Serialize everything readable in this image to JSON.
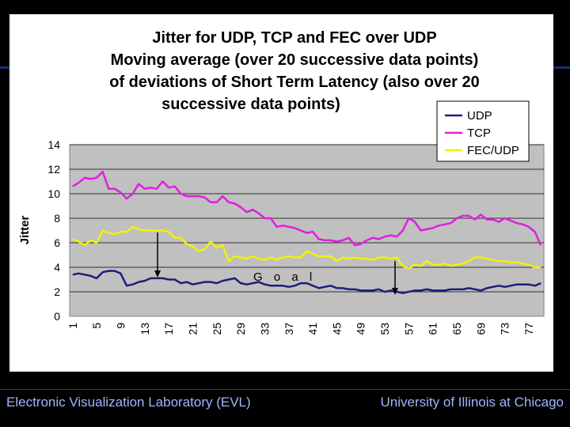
{
  "footer": {
    "left": "Electronic Visualization Laboratory (EVL)",
    "right": "University of Illinois at Chicago"
  },
  "annotation": {
    "goal": "G o a l"
  },
  "chart_data": {
    "type": "line",
    "title_lines": [
      "Jitter for UDP, TCP and FEC over UDP",
      "Moving average (over 20 successive data points)",
      "of deviations of Short Term Latency (also over 20",
      "successive data points)"
    ],
    "ylabel": "Jitter",
    "xlabel": "",
    "ylim": [
      0,
      14
    ],
    "yticks": [
      0,
      2,
      4,
      6,
      8,
      10,
      12,
      14
    ],
    "xticks": [
      1,
      5,
      9,
      13,
      17,
      21,
      25,
      29,
      33,
      37,
      41,
      45,
      49,
      53,
      57,
      61,
      65,
      69,
      73,
      77
    ],
    "x_start": 1,
    "x_end": 79,
    "legend_position": "top-right",
    "series": [
      {
        "name": "UDP",
        "color": "#1c1f7a",
        "values": [
          3.4,
          3.5,
          3.4,
          3.3,
          3.1,
          3.6,
          3.7,
          3.7,
          3.5,
          2.5,
          2.6,
          2.8,
          2.9,
          3.1,
          3.1,
          3.1,
          3.0,
          3.0,
          2.7,
          2.8,
          2.6,
          2.7,
          2.8,
          2.8,
          2.7,
          2.9,
          3.0,
          3.1,
          2.7,
          2.6,
          2.7,
          2.8,
          2.6,
          2.5,
          2.5,
          2.5,
          2.4,
          2.5,
          2.7,
          2.7,
          2.5,
          2.3,
          2.4,
          2.5,
          2.3,
          2.3,
          2.2,
          2.2,
          2.1,
          2.1,
          2.1,
          2.2,
          2.0,
          2.1,
          2.0,
          1.9,
          2.0,
          2.1,
          2.1,
          2.2,
          2.1,
          2.1,
          2.1,
          2.2,
          2.2,
          2.2,
          2.3,
          2.2,
          2.1,
          2.3,
          2.4,
          2.5,
          2.4,
          2.5,
          2.6,
          2.6,
          2.6,
          2.5,
          2.7
        ]
      },
      {
        "name": "TCP",
        "color": "#e11ee0",
        "values": [
          10.6,
          10.9,
          11.3,
          11.2,
          11.3,
          11.8,
          10.4,
          10.4,
          10.1,
          9.6,
          10.0,
          10.8,
          10.4,
          10.5,
          10.4,
          11.0,
          10.5,
          10.6,
          10.0,
          9.8,
          9.8,
          9.8,
          9.7,
          9.3,
          9.3,
          9.8,
          9.3,
          9.2,
          8.9,
          8.5,
          8.7,
          8.4,
          8.0,
          8.0,
          7.3,
          7.4,
          7.3,
          7.2,
          7.0,
          6.8,
          6.9,
          6.3,
          6.2,
          6.2,
          6.1,
          6.2,
          6.4,
          5.8,
          5.9,
          6.2,
          6.4,
          6.3,
          6.5,
          6.6,
          6.5,
          7.0,
          8.0,
          7.7,
          7.0,
          7.1,
          7.2,
          7.4,
          7.5,
          7.6,
          8.0,
          8.2,
          8.2,
          7.9,
          8.3,
          7.9,
          7.9,
          7.7,
          8.0,
          7.8,
          7.6,
          7.5,
          7.3,
          6.9,
          5.8
        ]
      },
      {
        "name": "FEC/UDP",
        "color": "#f2f202",
        "values": [
          6.3,
          6.1,
          5.8,
          6.2,
          6.0,
          7.0,
          6.8,
          6.7,
          6.9,
          6.9,
          7.3,
          7.1,
          7.0,
          7.0,
          7.0,
          7.0,
          6.9,
          6.4,
          6.4,
          5.9,
          5.7,
          5.3,
          5.5,
          6.1,
          5.6,
          5.8,
          4.5,
          4.9,
          4.8,
          4.7,
          4.9,
          4.7,
          4.6,
          4.8,
          4.6,
          4.8,
          4.9,
          4.8,
          4.8,
          5.3,
          5.1,
          4.9,
          4.9,
          4.9,
          4.5,
          4.8,
          4.7,
          4.8,
          4.7,
          4.7,
          4.6,
          4.8,
          4.8,
          4.7,
          4.8,
          4.1,
          3.9,
          4.2,
          4.1,
          4.5,
          4.2,
          4.2,
          4.3,
          4.1,
          4.2,
          4.3,
          4.5,
          4.8,
          4.8,
          4.7,
          4.6,
          4.5,
          4.5,
          4.4,
          4.4,
          4.3,
          4.2,
          4.0,
          4.0
        ]
      }
    ]
  }
}
